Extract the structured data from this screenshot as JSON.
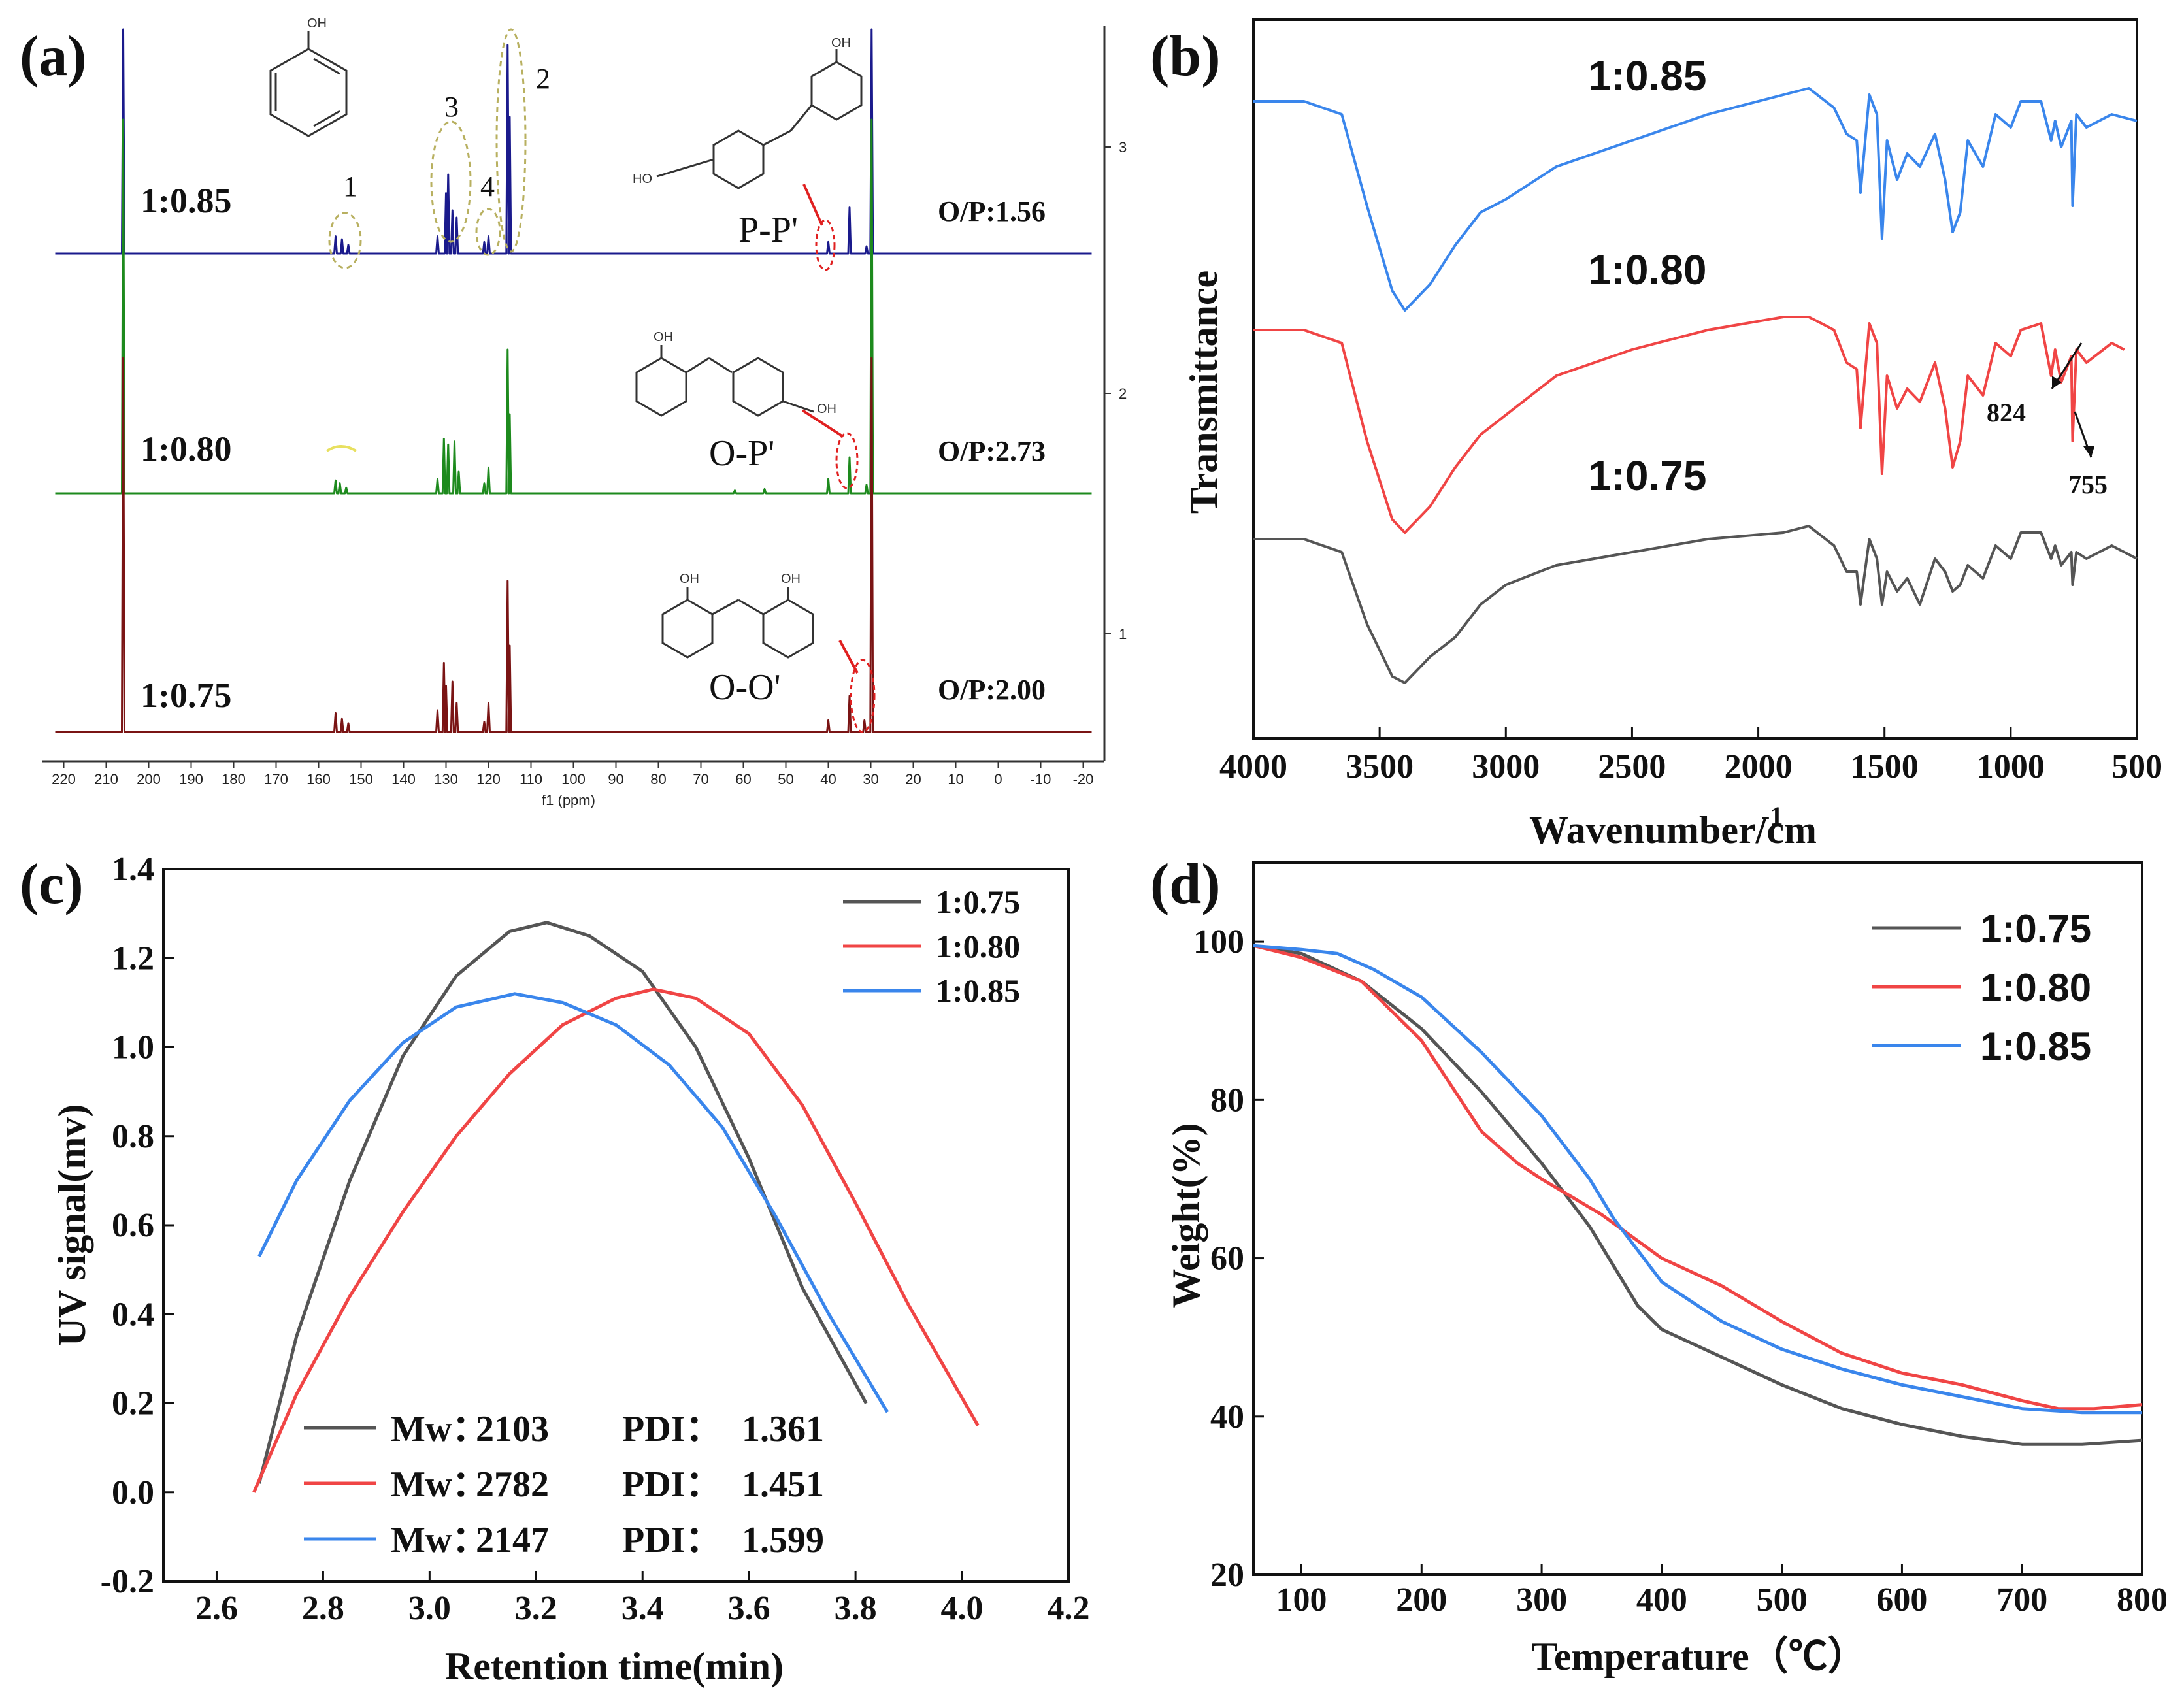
{
  "panels": {
    "a": {
      "label": "(a)"
    },
    "b": {
      "label": "(b)"
    },
    "c": {
      "label": "(c)"
    },
    "d": {
      "label": "(d)"
    }
  },
  "colors": {
    "black_series": "#555555",
    "red_series": "#f04545",
    "blue_series": "#3a86ec",
    "nmr_blue": "#1a1a8c",
    "nmr_green": "#1d8a1d",
    "nmr_darkred": "#7a1414",
    "ellipse": "#b8b060",
    "marker_red": "#e02020"
  },
  "chart_data": [
    {
      "id": "a",
      "type": "line",
      "title": "",
      "xlabel": "f1 (ppm)",
      "ylabel": "",
      "x_reversed": true,
      "xlim": [
        225,
        -25
      ],
      "xticks": [
        220,
        210,
        200,
        190,
        180,
        170,
        160,
        150,
        140,
        130,
        120,
        110,
        100,
        90,
        80,
        70,
        60,
        50,
        40,
        30,
        20,
        10,
        0,
        -10,
        -20
      ],
      "right_ticks": [
        "3",
        "2",
        "1"
      ],
      "series": [
        {
          "name": "1:0.85",
          "op": "O/P:1.56",
          "isomer": "P-P'",
          "peaks": [
            [
              206,
              2.6
            ],
            [
              156,
              0.12
            ],
            [
              154.5,
              0.1
            ],
            [
              153,
              0.06
            ],
            [
              132,
              0.12
            ],
            [
              130,
              0.42
            ],
            [
              129.5,
              0.55
            ],
            [
              128.5,
              0.3
            ],
            [
              127.5,
              0.25
            ],
            [
              121,
              0.08
            ],
            [
              120,
              0.12
            ],
            [
              115.5,
              1.45
            ],
            [
              115,
              0.95
            ],
            [
              40,
              0.08
            ],
            [
              35,
              0.32
            ],
            [
              31,
              0.05
            ],
            [
              29.8,
              2.6
            ]
          ]
        },
        {
          "name": "1:0.80",
          "op": "O/P:2.73",
          "isomer": "O-P'",
          "peaks": [
            [
              206,
              2.6
            ],
            [
              156,
              0.09
            ],
            [
              155,
              0.07
            ],
            [
              153.5,
              0.04
            ],
            [
              132,
              0.1
            ],
            [
              130.5,
              0.38
            ],
            [
              129.5,
              0.34
            ],
            [
              128,
              0.36
            ],
            [
              127,
              0.15
            ],
            [
              121,
              0.07
            ],
            [
              120,
              0.18
            ],
            [
              115.5,
              1.0
            ],
            [
              115,
              0.55
            ],
            [
              62,
              0.02
            ],
            [
              55,
              0.03
            ],
            [
              40,
              0.1
            ],
            [
              35,
              0.25
            ],
            [
              31,
              0.06
            ],
            [
              29.8,
              2.6
            ]
          ]
        },
        {
          "name": "1:0.75",
          "op": "O/P:2.00",
          "isomer": "O-O'",
          "peaks": [
            [
              206,
              2.6
            ],
            [
              156,
              0.13
            ],
            [
              154.5,
              0.09
            ],
            [
              153,
              0.06
            ],
            [
              132,
              0.15
            ],
            [
              130.5,
              0.48
            ],
            [
              130,
              0.32
            ],
            [
              128.5,
              0.35
            ],
            [
              127.5,
              0.2
            ],
            [
              121,
              0.07
            ],
            [
              120,
              0.2
            ],
            [
              115.5,
              1.05
            ],
            [
              115,
              0.6
            ],
            [
              40,
              0.08
            ],
            [
              35,
              0.25
            ],
            [
              31.5,
              0.08
            ],
            [
              29.8,
              2.6
            ]
          ]
        }
      ],
      "annotations": {
        "peak_labels": [
          "1",
          "2",
          "3",
          "4"
        ],
        "oh_label": "OH",
        "ho_label": "HO"
      }
    },
    {
      "id": "b",
      "type": "line",
      "title": "",
      "xlabel": "Wavenumber/cm",
      "xlabel_sup": "-1",
      "ylabel": "Transmittance",
      "x_reversed": true,
      "xlim": [
        4000,
        500
      ],
      "xticks": [
        4000,
        3500,
        3000,
        2500,
        2000,
        1500,
        1000,
        500
      ],
      "series": [
        {
          "name": "1:0.85",
          "x": [
            4000,
            3800,
            3650,
            3550,
            3450,
            3400,
            3300,
            3200,
            3100,
            3000,
            2800,
            2500,
            2200,
            1900,
            1800,
            1700,
            1650,
            1610,
            1595,
            1560,
            1530,
            1510,
            1490,
            1450,
            1410,
            1360,
            1300,
            1260,
            1230,
            1200,
            1170,
            1110,
            1060,
            1000,
            960,
            880,
            840,
            824,
            800,
            760,
            755,
            740,
            700,
            600,
            500
          ],
          "y": [
            0.92,
            0.92,
            0.9,
            0.76,
            0.63,
            0.6,
            0.64,
            0.7,
            0.75,
            0.77,
            0.82,
            0.86,
            0.9,
            0.93,
            0.94,
            0.91,
            0.87,
            0.86,
            0.78,
            0.93,
            0.9,
            0.71,
            0.86,
            0.8,
            0.84,
            0.82,
            0.87,
            0.8,
            0.72,
            0.75,
            0.86,
            0.82,
            0.9,
            0.88,
            0.92,
            0.92,
            0.86,
            0.89,
            0.85,
            0.89,
            0.76,
            0.9,
            0.88,
            0.9,
            0.89
          ]
        },
        {
          "name": "1:0.80",
          "x": [
            4000,
            3800,
            3650,
            3550,
            3450,
            3400,
            3300,
            3200,
            3100,
            3000,
            2800,
            2500,
            2200,
            1900,
            1800,
            1700,
            1650,
            1610,
            1595,
            1560,
            1530,
            1510,
            1490,
            1450,
            1410,
            1360,
            1300,
            1260,
            1230,
            1200,
            1170,
            1110,
            1060,
            1000,
            960,
            880,
            840,
            824,
            800,
            760,
            755,
            740,
            700,
            600,
            550
          ],
          "y": [
            0.57,
            0.57,
            0.55,
            0.4,
            0.28,
            0.26,
            0.3,
            0.36,
            0.41,
            0.44,
            0.5,
            0.54,
            0.57,
            0.59,
            0.59,
            0.57,
            0.52,
            0.51,
            0.42,
            0.58,
            0.55,
            0.35,
            0.5,
            0.45,
            0.48,
            0.46,
            0.52,
            0.45,
            0.36,
            0.4,
            0.5,
            0.47,
            0.55,
            0.53,
            0.57,
            0.58,
            0.5,
            0.54,
            0.49,
            0.53,
            0.4,
            0.54,
            0.52,
            0.55,
            0.54
          ]
        },
        {
          "name": "1:0.75",
          "x": [
            4000,
            3800,
            3650,
            3550,
            3450,
            3400,
            3300,
            3200,
            3100,
            3000,
            2800,
            2500,
            2200,
            1900,
            1800,
            1700,
            1650,
            1610,
            1595,
            1560,
            1530,
            1510,
            1490,
            1450,
            1410,
            1360,
            1300,
            1260,
            1230,
            1200,
            1170,
            1110,
            1060,
            1000,
            960,
            880,
            840,
            824,
            800,
            760,
            755,
            740,
            700,
            600,
            500
          ],
          "y": [
            0.25,
            0.25,
            0.23,
            0.12,
            0.04,
            0.03,
            0.07,
            0.1,
            0.15,
            0.18,
            0.21,
            0.23,
            0.25,
            0.26,
            0.27,
            0.24,
            0.2,
            0.2,
            0.15,
            0.25,
            0.22,
            0.15,
            0.2,
            0.17,
            0.19,
            0.15,
            0.22,
            0.2,
            0.17,
            0.18,
            0.21,
            0.19,
            0.24,
            0.22,
            0.26,
            0.26,
            0.22,
            0.24,
            0.21,
            0.23,
            0.18,
            0.23,
            0.22,
            0.24,
            0.22
          ]
        }
      ],
      "annotations": [
        {
          "text": "824"
        },
        {
          "text": "755"
        }
      ]
    },
    {
      "id": "c",
      "type": "line",
      "title": "",
      "xlabel": "Retention time(min)",
      "ylabel": "UV signal(mv)",
      "xlim": [
        2.5,
        4.2
      ],
      "ylim": [
        -0.2,
        1.4
      ],
      "xticks": [
        "2.6",
        "2.8",
        "3.0",
        "3.2",
        "3.4",
        "3.6",
        "3.8",
        "4.0",
        "4.2"
      ],
      "yticks": [
        "-0.2",
        "0.0",
        "0.2",
        "0.4",
        "0.6",
        "0.8",
        "1.0",
        "1.2",
        "1.4"
      ],
      "series": [
        {
          "name": "1:0.75",
          "mw": "2103",
          "pdi": "1.361",
          "x": [
            2.68,
            2.75,
            2.85,
            2.95,
            3.05,
            3.15,
            3.22,
            3.3,
            3.4,
            3.5,
            3.6,
            3.7,
            3.82
          ],
          "y": [
            0.02,
            0.35,
            0.7,
            0.98,
            1.16,
            1.26,
            1.28,
            1.25,
            1.17,
            1.0,
            0.75,
            0.46,
            0.2
          ]
        },
        {
          "name": "1:0.80",
          "mw": "2782",
          "pdi": "1.451",
          "x": [
            2.67,
            2.75,
            2.85,
            2.95,
            3.05,
            3.15,
            3.25,
            3.35,
            3.42,
            3.5,
            3.6,
            3.7,
            3.8,
            3.9,
            4.03
          ],
          "y": [
            0.0,
            0.22,
            0.44,
            0.63,
            0.8,
            0.94,
            1.05,
            1.11,
            1.13,
            1.11,
            1.03,
            0.87,
            0.65,
            0.42,
            0.15
          ]
        },
        {
          "name": "1:0.85",
          "mw": "2147",
          "pdi": "1.599",
          "x": [
            2.68,
            2.75,
            2.85,
            2.95,
            3.05,
            3.16,
            3.25,
            3.35,
            3.45,
            3.55,
            3.65,
            3.75,
            3.86
          ],
          "y": [
            0.53,
            0.7,
            0.88,
            1.01,
            1.09,
            1.12,
            1.1,
            1.05,
            0.96,
            0.82,
            0.62,
            0.4,
            0.18
          ]
        }
      ],
      "legend_position": "top-right",
      "mw_label": "Mw：",
      "pdi_label": "PDI："
    },
    {
      "id": "d",
      "type": "line",
      "title": "",
      "xlabel": "Temperature（℃）",
      "ylabel": "Weight(%)",
      "xlim": [
        60,
        800
      ],
      "ylim": [
        20,
        110
      ],
      "xticks": [
        "100",
        "200",
        "300",
        "400",
        "500",
        "600",
        "700",
        "800"
      ],
      "yticks": [
        "20",
        "40",
        "60",
        "80",
        "100"
      ],
      "series": [
        {
          "name": "1:0.75",
          "x": [
            60,
            100,
            150,
            200,
            250,
            300,
            340,
            360,
            380,
            400,
            450,
            500,
            550,
            600,
            650,
            700,
            750,
            800
          ],
          "y": [
            99.5,
            98.5,
            95,
            89,
            81,
            72,
            64,
            59,
            54,
            51,
            47.5,
            44,
            41,
            39,
            37.5,
            36.5,
            36.5,
            37
          ]
        },
        {
          "name": "1:0.80",
          "x": [
            60,
            100,
            150,
            200,
            250,
            280,
            300,
            350,
            400,
            450,
            500,
            550,
            600,
            650,
            700,
            730,
            760,
            800
          ],
          "y": [
            99.5,
            98,
            95,
            87.5,
            76,
            72,
            70,
            65.5,
            60,
            56.5,
            52,
            48,
            45.5,
            44,
            42,
            41,
            41,
            41.5
          ]
        },
        {
          "name": "1:0.85",
          "x": [
            60,
            100,
            130,
            160,
            200,
            250,
            300,
            340,
            360,
            380,
            400,
            450,
            500,
            550,
            600,
            650,
            700,
            750,
            800
          ],
          "y": [
            99.5,
            99,
            98.5,
            96.5,
            93,
            86,
            78,
            70,
            65,
            61,
            57,
            52,
            48.5,
            46,
            44,
            42.5,
            41,
            40.5,
            40.5
          ]
        }
      ],
      "legend_position": "top-right"
    }
  ]
}
